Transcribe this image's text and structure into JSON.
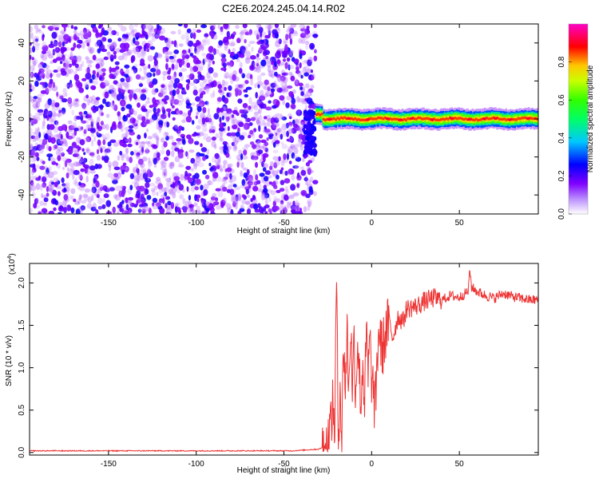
{
  "title": "C2E6.2024.245.04.14.R02",
  "chart_data": [
    {
      "type": "heatmap",
      "xlabel": "Height of straight line (km)",
      "ylabel": "Frequency (Hz)",
      "xlim": [
        -195,
        95
      ],
      "ylim": [
        -50,
        50
      ],
      "xticks": [
        -150,
        -100,
        -50,
        0,
        50
      ],
      "yticks": [
        -40,
        -20,
        0,
        20,
        40
      ],
      "noise_region_x": [
        -195,
        -32
      ],
      "signal_region_x": [
        -32,
        95
      ],
      "signal_center_y": 0,
      "colorbar": {
        "label": "Normalized spectral amplitude",
        "range": [
          0,
          1
        ],
        "ticks": [
          0.0,
          0.2,
          0.4,
          0.6,
          0.8
        ],
        "tick_labels": [
          "0.0",
          "0.2",
          "0.4",
          "0.6",
          "0.8"
        ],
        "colors": [
          "#ffffff",
          "#7f00ff",
          "#0000ff",
          "#00c8ff",
          "#00ff00",
          "#c8ff00",
          "#ffc800",
          "#ff0000",
          "#ff00c8"
        ]
      }
    },
    {
      "type": "line",
      "xlabel": "Height of straight line (km)",
      "ylabel": "SNR (10 * v/v)",
      "exponent_label": "(x10",
      "exponent_power": "4",
      "exponent_close": ")",
      "xlim": [
        -195,
        95
      ],
      "ylim": [
        -0.03,
        2.23
      ],
      "xticks": [
        -150,
        -100,
        -50,
        0,
        50
      ],
      "yticks": [
        0.0,
        0.5,
        1.0,
        1.5,
        2.0
      ],
      "ytick_labels": [
        "0.0",
        "0.5",
        "1.0",
        "1.5",
        "2.0"
      ],
      "line_color": "#ee3333",
      "series": [
        {
          "x": [
            -195,
            -100,
            -45,
            -30,
            -25,
            -22,
            -21,
            -20,
            -19,
            -18,
            -17,
            -16,
            -15,
            -14,
            -13,
            -12,
            -11,
            -10,
            -9,
            -8,
            -7,
            -6,
            -5,
            -4,
            -3,
            -2,
            -1,
            0,
            2,
            4,
            6,
            8,
            10,
            12,
            15,
            18,
            20,
            25,
            30,
            35,
            40,
            45,
            50,
            55,
            56,
            57,
            60,
            65,
            70,
            75,
            80,
            85,
            90,
            95
          ],
          "values": [
            0.02,
            0.02,
            0.02,
            0.04,
            0.1,
            0.55,
            0.3,
            2.1,
            0.05,
            0.9,
            0.1,
            1.35,
            0.75,
            1.45,
            0.7,
            1.55,
            0.8,
            1.3,
            0.7,
            1.4,
            0.9,
            0.6,
            1.1,
            0.55,
            1.4,
            0.9,
            1.3,
            0.9,
            0.5,
            1.45,
            1.2,
            1.4,
            1.55,
            1.35,
            1.6,
            1.55,
            1.7,
            1.72,
            1.78,
            1.82,
            1.8,
            1.85,
            1.83,
            1.9,
            2.15,
            1.95,
            1.9,
            1.85,
            1.82,
            1.88,
            1.84,
            1.82,
            1.8,
            1.8
          ]
        }
      ]
    }
  ]
}
